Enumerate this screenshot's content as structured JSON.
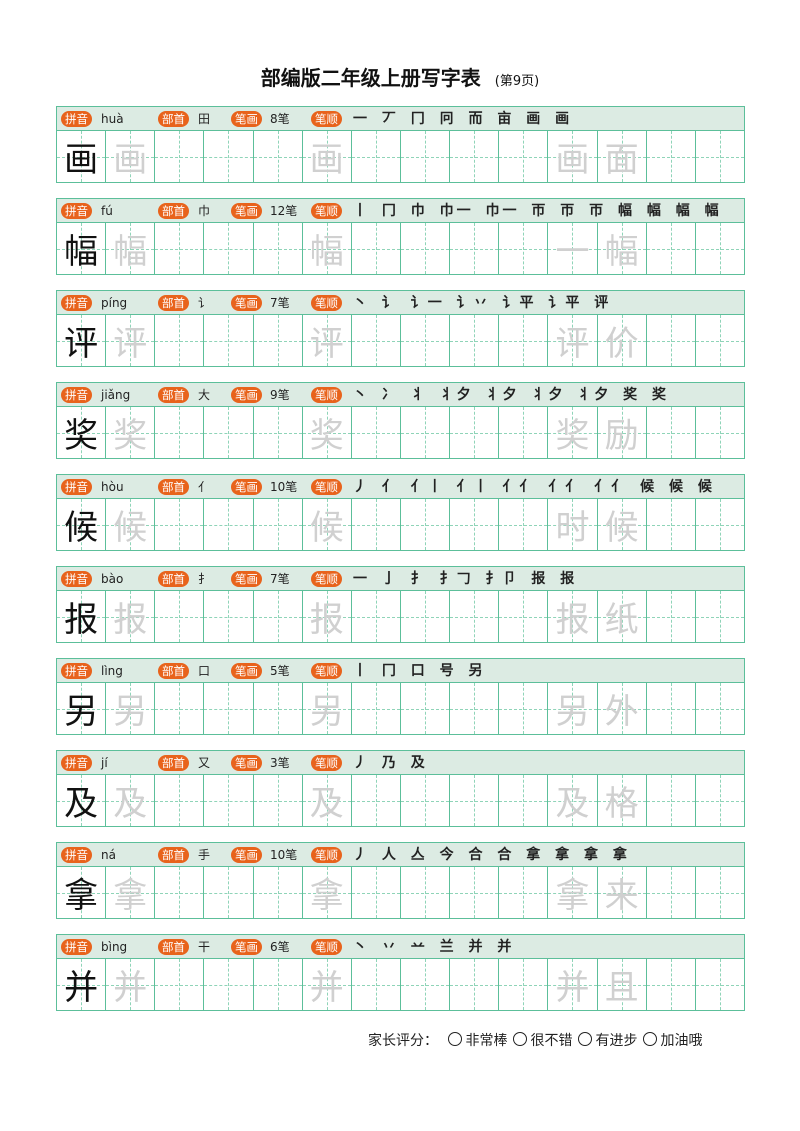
{
  "title": "部编版二年级上册写字表",
  "page_label": "(第9页)",
  "labels": {
    "pinyin": "拼音",
    "radical": "部首",
    "strokes": "笔画",
    "order": "笔顺"
  },
  "rows": [
    {
      "char": "画",
      "pinyin": "huà",
      "radical": "田",
      "count": "8笔",
      "order": "一 丆 冂 冋 而 亩 画 画",
      "word": "画面"
    },
    {
      "char": "幅",
      "pinyin": "fú",
      "radical": "巾",
      "count": "12笔",
      "order": "丨 冂 巾 巾一 巾一 帀 帀 帀 幅 幅 幅 幅",
      "word": "一幅"
    },
    {
      "char": "评",
      "pinyin": "píng",
      "radical": "讠",
      "count": "7笔",
      "order": "丶 讠 讠一 讠丷 讠平 讠平 评",
      "word": "评价"
    },
    {
      "char": "奖",
      "pinyin": "jiǎng",
      "radical": "大",
      "count": "9笔",
      "order": "丶 冫 丬 丬夕 丬夕 丬夕 丬夕 奖 奖",
      "word": "奖励"
    },
    {
      "char": "候",
      "pinyin": "hòu",
      "radical": "亻",
      "count": "10笔",
      "order": "丿 亻 亻丨 亻丨 亻亻 亻亻 亻亻 候 候 候",
      "word": "时候"
    },
    {
      "char": "报",
      "pinyin": "bào",
      "radical": "扌",
      "count": "7笔",
      "order": "一 亅 扌 扌𠃌 扌卩 报 报",
      "word": "报纸"
    },
    {
      "char": "另",
      "pinyin": "lìng",
      "radical": "口",
      "count": "5笔",
      "order": "丨 冂 口 号 另",
      "word": "另外"
    },
    {
      "char": "及",
      "pinyin": "jí",
      "radical": "又",
      "count": "3笔",
      "order": "丿 乃 及",
      "word": "及格"
    },
    {
      "char": "拿",
      "pinyin": "ná",
      "radical": "手",
      "count": "10笔",
      "order": "丿 人 亼 今 合 合 拿 拿 拿 拿",
      "word": "拿来"
    },
    {
      "char": "并",
      "pinyin": "bìng",
      "radical": "干",
      "count": "6笔",
      "order": "丶 丷 䒑 兰 并 并",
      "word": "并且"
    }
  ],
  "footer": {
    "label": "家长评分：",
    "options": [
      "非常棒",
      "很不错",
      "有进步",
      "加油哦"
    ]
  },
  "colors": {
    "grid": "#5cbf9a",
    "header_bg": "#dcebe3",
    "badge": "#e8631c"
  }
}
